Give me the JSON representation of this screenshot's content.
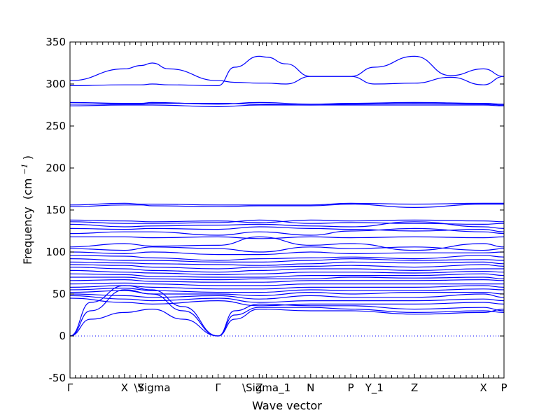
{
  "chart_data": {
    "type": "line",
    "xlabel": "Wave vector",
    "ylabel": "Frequency",
    "ylabel_unit": "(cm",
    "ylabel_exp": "−1",
    "ylabel_close": ")",
    "ylim": [
      -50,
      350
    ],
    "xlim": [
      0,
      2.11
    ],
    "yticks": [
      -50,
      0,
      50,
      100,
      150,
      200,
      250,
      300,
      350
    ],
    "high_symmetry_points": [
      {
        "label": "Γ",
        "x": 0.0
      },
      {
        "label": "X",
        "x": 0.265
      },
      {
        "label": "Y",
        "x": 0.345
      },
      {
        "label": "\\Sigma",
        "x": 0.4
      },
      {
        "label": "Γ",
        "x": 0.72
      },
      {
        "label": "Z",
        "x": 0.92
      },
      {
        "label": "\\Sigma_1",
        "x": 0.955
      },
      {
        "label": "N",
        "x": 1.17
      },
      {
        "label": "P",
        "x": 1.365
      },
      {
        "label": "Y_1",
        "x": 1.48
      },
      {
        "label": "Z",
        "x": 1.675
      },
      {
        "label": "X",
        "x": 2.01
      },
      {
        "label": "P",
        "x": 2.11
      }
    ],
    "reference_line_y": 0,
    "series": [
      {
        "x": [
          0,
          0.265,
          0.345,
          0.4,
          0.48,
          0.72,
          0.8,
          0.92,
          0.955,
          1.05,
          1.17,
          1.365,
          1.48,
          1.675,
          1.85,
          2.01,
          2.11
        ],
        "y": [
          304,
          318,
          322,
          325,
          318,
          304,
          302,
          301,
          301,
          300,
          309,
          309,
          320,
          333,
          310,
          318,
          309
        ]
      },
      {
        "x": [
          0,
          0.265,
          0.345,
          0.4,
          0.48,
          0.72,
          0.8,
          0.92,
          0.955,
          1.05,
          1.17,
          1.365,
          1.48,
          1.675,
          1.85,
          2.01,
          2.11
        ],
        "y": [
          298,
          299,
          299,
          300,
          299,
          298,
          320,
          333,
          332,
          324,
          309,
          309,
          300,
          301,
          308,
          299,
          309
        ]
      },
      {
        "x": [
          0,
          0.265,
          0.345,
          0.4,
          0.72,
          0.92,
          1.17,
          1.365,
          1.675,
          2.01,
          2.11
        ],
        "y": [
          278,
          277,
          277,
          278,
          276,
          278,
          276,
          277,
          278,
          277,
          276
        ]
      },
      {
        "x": [
          0,
          0.265,
          0.345,
          0.4,
          0.72,
          0.92,
          1.17,
          1.365,
          1.675,
          2.01,
          2.11
        ],
        "y": [
          276,
          276,
          276,
          277,
          277,
          276,
          275,
          276,
          277,
          276,
          275
        ]
      },
      {
        "x": [
          0,
          0.265,
          0.345,
          0.4,
          0.72,
          0.92,
          1.17,
          1.365,
          1.675,
          2.01,
          2.11
        ],
        "y": [
          274,
          275,
          275,
          275,
          273,
          275,
          275,
          275,
          275,
          275,
          274
        ]
      },
      {
        "x": [
          0,
          0.265,
          0.345,
          0.4,
          0.72,
          0.92,
          1.17,
          1.365,
          1.675,
          2.01,
          2.11
        ],
        "y": [
          156,
          158,
          157,
          157,
          156,
          156,
          156,
          158,
          157,
          158,
          158
        ]
      },
      {
        "x": [
          0,
          0.265,
          0.345,
          0.4,
          0.72,
          0.92,
          1.17,
          1.365,
          1.675,
          2.01,
          2.11
        ],
        "y": [
          154,
          156,
          156,
          155,
          154,
          155,
          155,
          157,
          153,
          157,
          157
        ]
      },
      {
        "x": [
          0,
          0.265,
          0.4,
          0.72,
          0.92,
          1.17,
          1.365,
          1.675,
          2.01,
          2.11
        ],
        "y": [
          138,
          137,
          136,
          137,
          135,
          138,
          137,
          138,
          137,
          136
        ]
      },
      {
        "x": [
          0,
          0.265,
          0.4,
          0.72,
          0.92,
          1.17,
          1.365,
          1.675,
          2.01,
          2.11
        ],
        "y": [
          136,
          134,
          134,
          135,
          138,
          134,
          135,
          134,
          133,
          134
        ]
      },
      {
        "x": [
          0,
          0.265,
          0.4,
          0.72,
          0.92,
          1.17,
          1.365,
          1.675,
          2.01,
          2.11
        ],
        "y": [
          133,
          130,
          131,
          132,
          133,
          131,
          130,
          136,
          130,
          128
        ]
      },
      {
        "x": [
          0,
          0.265,
          0.4,
          0.72,
          0.92,
          1.17,
          1.365,
          1.675,
          2.01,
          2.11
        ],
        "y": [
          128,
          127,
          128,
          127,
          130,
          128,
          127,
          125,
          127,
          124
        ]
      },
      {
        "x": [
          0,
          0.265,
          0.4,
          0.72,
          0.92,
          1.17,
          1.365,
          1.675,
          2.01,
          2.11
        ],
        "y": [
          122,
          124,
          124,
          120,
          124,
          120,
          125,
          128,
          124,
          122
        ]
      },
      {
        "x": [
          0,
          0.265,
          0.4,
          0.72,
          0.92,
          1.17,
          1.365,
          1.675,
          2.01,
          2.11
        ],
        "y": [
          118,
          118,
          117,
          118,
          116,
          118,
          117,
          118,
          117,
          118
        ]
      },
      {
        "x": [
          0,
          0.265,
          0.4,
          0.72,
          0.92,
          1.17,
          1.365,
          1.675,
          2.01,
          2.11
        ],
        "y": [
          106,
          110,
          107,
          108,
          118,
          108,
          110,
          102,
          110,
          106
        ]
      },
      {
        "x": [
          0,
          0.265,
          0.4,
          0.72,
          0.92,
          1.17,
          1.365,
          1.675,
          2.01,
          2.11
        ],
        "y": [
          104,
          102,
          106,
          104,
          100,
          106,
          104,
          106,
          102,
          104
        ]
      },
      {
        "x": [
          0,
          0.265,
          0.4,
          0.72,
          0.92,
          1.17,
          1.365,
          1.675,
          2.01,
          2.11
        ],
        "y": [
          100,
          98,
          100,
          97,
          97,
          100,
          98,
          99,
          99,
          100
        ]
      },
      {
        "x": [
          0,
          0.265,
          0.4,
          0.72,
          0.92,
          1.17,
          1.365,
          1.675,
          2.01,
          2.11
        ],
        "y": [
          96,
          95,
          93,
          90,
          92,
          93,
          94,
          92,
          96,
          94
        ]
      },
      {
        "x": [
          0,
          0.265,
          0.4,
          0.72,
          0.92,
          1.17,
          1.365,
          1.675,
          2.01,
          2.11
        ],
        "y": [
          92,
          90,
          90,
          88,
          88,
          90,
          92,
          90,
          91,
          90
        ]
      },
      {
        "x": [
          0,
          0.265,
          0.4,
          0.72,
          0.92,
          1.17,
          1.365,
          1.675,
          2.01,
          2.11
        ],
        "y": [
          88,
          87,
          86,
          85,
          84,
          86,
          88,
          87,
          88,
          86
        ]
      },
      {
        "x": [
          0,
          0.265,
          0.4,
          0.72,
          0.92,
          1.17,
          1.365,
          1.675,
          2.01,
          2.11
        ],
        "y": [
          85,
          84,
          82,
          80,
          82,
          83,
          84,
          82,
          85,
          83
        ]
      },
      {
        "x": [
          0,
          0.265,
          0.4,
          0.72,
          0.92,
          1.17,
          1.365,
          1.675,
          2.01,
          2.11
        ],
        "y": [
          82,
          80,
          78,
          76,
          78,
          80,
          80,
          78,
          80,
          80
        ]
      },
      {
        "x": [
          0,
          0.265,
          0.4,
          0.72,
          0.92,
          1.17,
          1.365,
          1.675,
          2.01,
          2.11
        ],
        "y": [
          78,
          76,
          75,
          73,
          74,
          76,
          76,
          75,
          77,
          76
        ]
      },
      {
        "x": [
          0,
          0.265,
          0.4,
          0.72,
          0.92,
          1.17,
          1.365,
          1.675,
          2.01,
          2.11
        ],
        "y": [
          74,
          73,
          71,
          70,
          70,
          72,
          72,
          72,
          74,
          72
        ]
      },
      {
        "x": [
          0,
          0.265,
          0.4,
          0.72,
          0.92,
          1.17,
          1.365,
          1.675,
          2.01,
          2.11
        ],
        "y": [
          70,
          70,
          68,
          67,
          68,
          68,
          70,
          69,
          70,
          68
        ]
      },
      {
        "x": [
          0,
          0.265,
          0.4,
          0.72,
          0.92,
          1.17,
          1.365,
          1.675,
          2.01,
          2.11
        ],
        "y": [
          66,
          67,
          65,
          64,
          64,
          66,
          66,
          66,
          67,
          66
        ]
      },
      {
        "x": [
          0,
          0.265,
          0.4,
          0.72,
          0.92,
          1.17,
          1.365,
          1.675,
          2.01,
          2.11
        ],
        "y": [
          62,
          63,
          62,
          60,
          60,
          62,
          62,
          62,
          62,
          62
        ]
      },
      {
        "x": [
          0,
          0.265,
          0.4,
          0.72,
          0.92,
          1.17,
          1.365,
          1.675,
          2.01,
          2.11
        ],
        "y": [
          58,
          60,
          58,
          56,
          56,
          58,
          58,
          58,
          60,
          58
        ]
      },
      {
        "x": [
          0,
          0.265,
          0.4,
          0.72,
          0.92,
          1.17,
          1.365,
          1.675,
          2.01,
          2.11
        ],
        "y": [
          55,
          57,
          54,
          52,
          52,
          55,
          54,
          54,
          56,
          55
        ]
      },
      {
        "x": [
          0,
          0.265,
          0.4,
          0.72,
          0.92,
          1.17,
          1.365,
          1.675,
          2.01,
          2.11
        ],
        "y": [
          52,
          54,
          50,
          50,
          48,
          52,
          50,
          52,
          52,
          50
        ]
      },
      {
        "x": [
          0,
          0.265,
          0.4,
          0.72,
          0.92,
          1.17,
          1.365,
          1.675,
          2.01,
          2.11
        ],
        "y": [
          50,
          48,
          46,
          48,
          44,
          48,
          46,
          46,
          50,
          46
        ]
      },
      {
        "x": [
          0,
          0.265,
          0.4,
          0.72,
          0.92,
          1.17,
          1.365,
          1.675,
          2.01,
          2.11
        ],
        "y": [
          48,
          44,
          42,
          45,
          40,
          42,
          42,
          42,
          44,
          42
        ]
      },
      {
        "x": [
          0,
          0.265,
          0.4,
          0.72,
          0.92,
          1.17,
          1.365,
          1.675,
          2.01,
          2.11
        ],
        "y": [
          45,
          40,
          38,
          42,
          36,
          38,
          38,
          38,
          40,
          38
        ]
      },
      {
        "x": [
          0,
          0.1,
          0.265,
          0.4,
          0.55,
          0.72,
          0.8,
          0.92,
          1.17,
          1.365,
          1.675,
          2.01,
          2.11
        ],
        "y": [
          0,
          40,
          60,
          55,
          35,
          0,
          30,
          38,
          36,
          36,
          32,
          34,
          30
        ]
      },
      {
        "x": [
          0,
          0.1,
          0.265,
          0.4,
          0.55,
          0.72,
          0.8,
          0.92,
          1.17,
          1.365,
          1.675,
          2.01,
          2.11
        ],
        "y": [
          0,
          30,
          55,
          50,
          30,
          0,
          25,
          34,
          34,
          32,
          28,
          30,
          28
        ]
      },
      {
        "x": [
          0,
          0.1,
          0.265,
          0.4,
          0.55,
          0.72,
          0.8,
          0.92,
          1.17,
          1.365,
          1.675,
          2.01,
          2.11
        ],
        "y": [
          0,
          20,
          28,
          32,
          20,
          0,
          20,
          32,
          30,
          30,
          26,
          28,
          32
        ]
      }
    ]
  }
}
